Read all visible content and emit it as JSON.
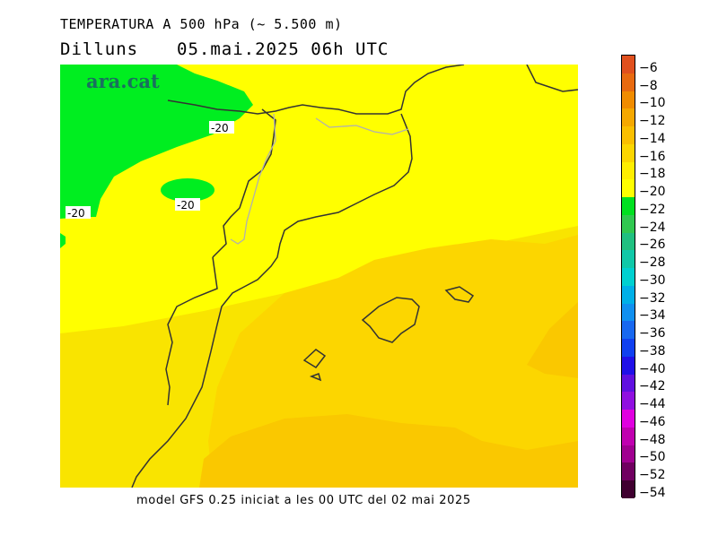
{
  "header": {
    "title": "TEMPERATURA A 500 hPa (~ 5.500 m)",
    "day": "Dilluns",
    "datetime": "05.mai.2025 06h UTC"
  },
  "logo": "ara.cat",
  "map": {
    "contour_labels": [
      "-20",
      "-20",
      "-20"
    ]
  },
  "footer": "model GFS 0.25 iniciat a les 00 UTC del 02 mai 2025",
  "legend": {
    "labels": [
      "-6",
      "-8",
      "-10",
      "-12",
      "-14",
      "-16",
      "-18",
      "-20",
      "-22",
      "-24",
      "-26",
      "-28",
      "-30",
      "-32",
      "-34",
      "-36",
      "-38",
      "-40",
      "-42",
      "-44",
      "-46",
      "-48",
      "-50",
      "-52",
      "-54"
    ],
    "colors": [
      "#e0501e",
      "#e86a10",
      "#f08c00",
      "#f5a800",
      "#fabf00",
      "#fcd600",
      "#ffee00",
      "#ffff00",
      "#00e020",
      "#30c850",
      "#20c080",
      "#10c8a8",
      "#00d0d0",
      "#00b0e8",
      "#1090f0",
      "#1868f0",
      "#1040f0",
      "#2010e8",
      "#6010e0",
      "#9010e0",
      "#e000e0",
      "#c000b0",
      "#a00090",
      "#700060",
      "#400030"
    ]
  }
}
